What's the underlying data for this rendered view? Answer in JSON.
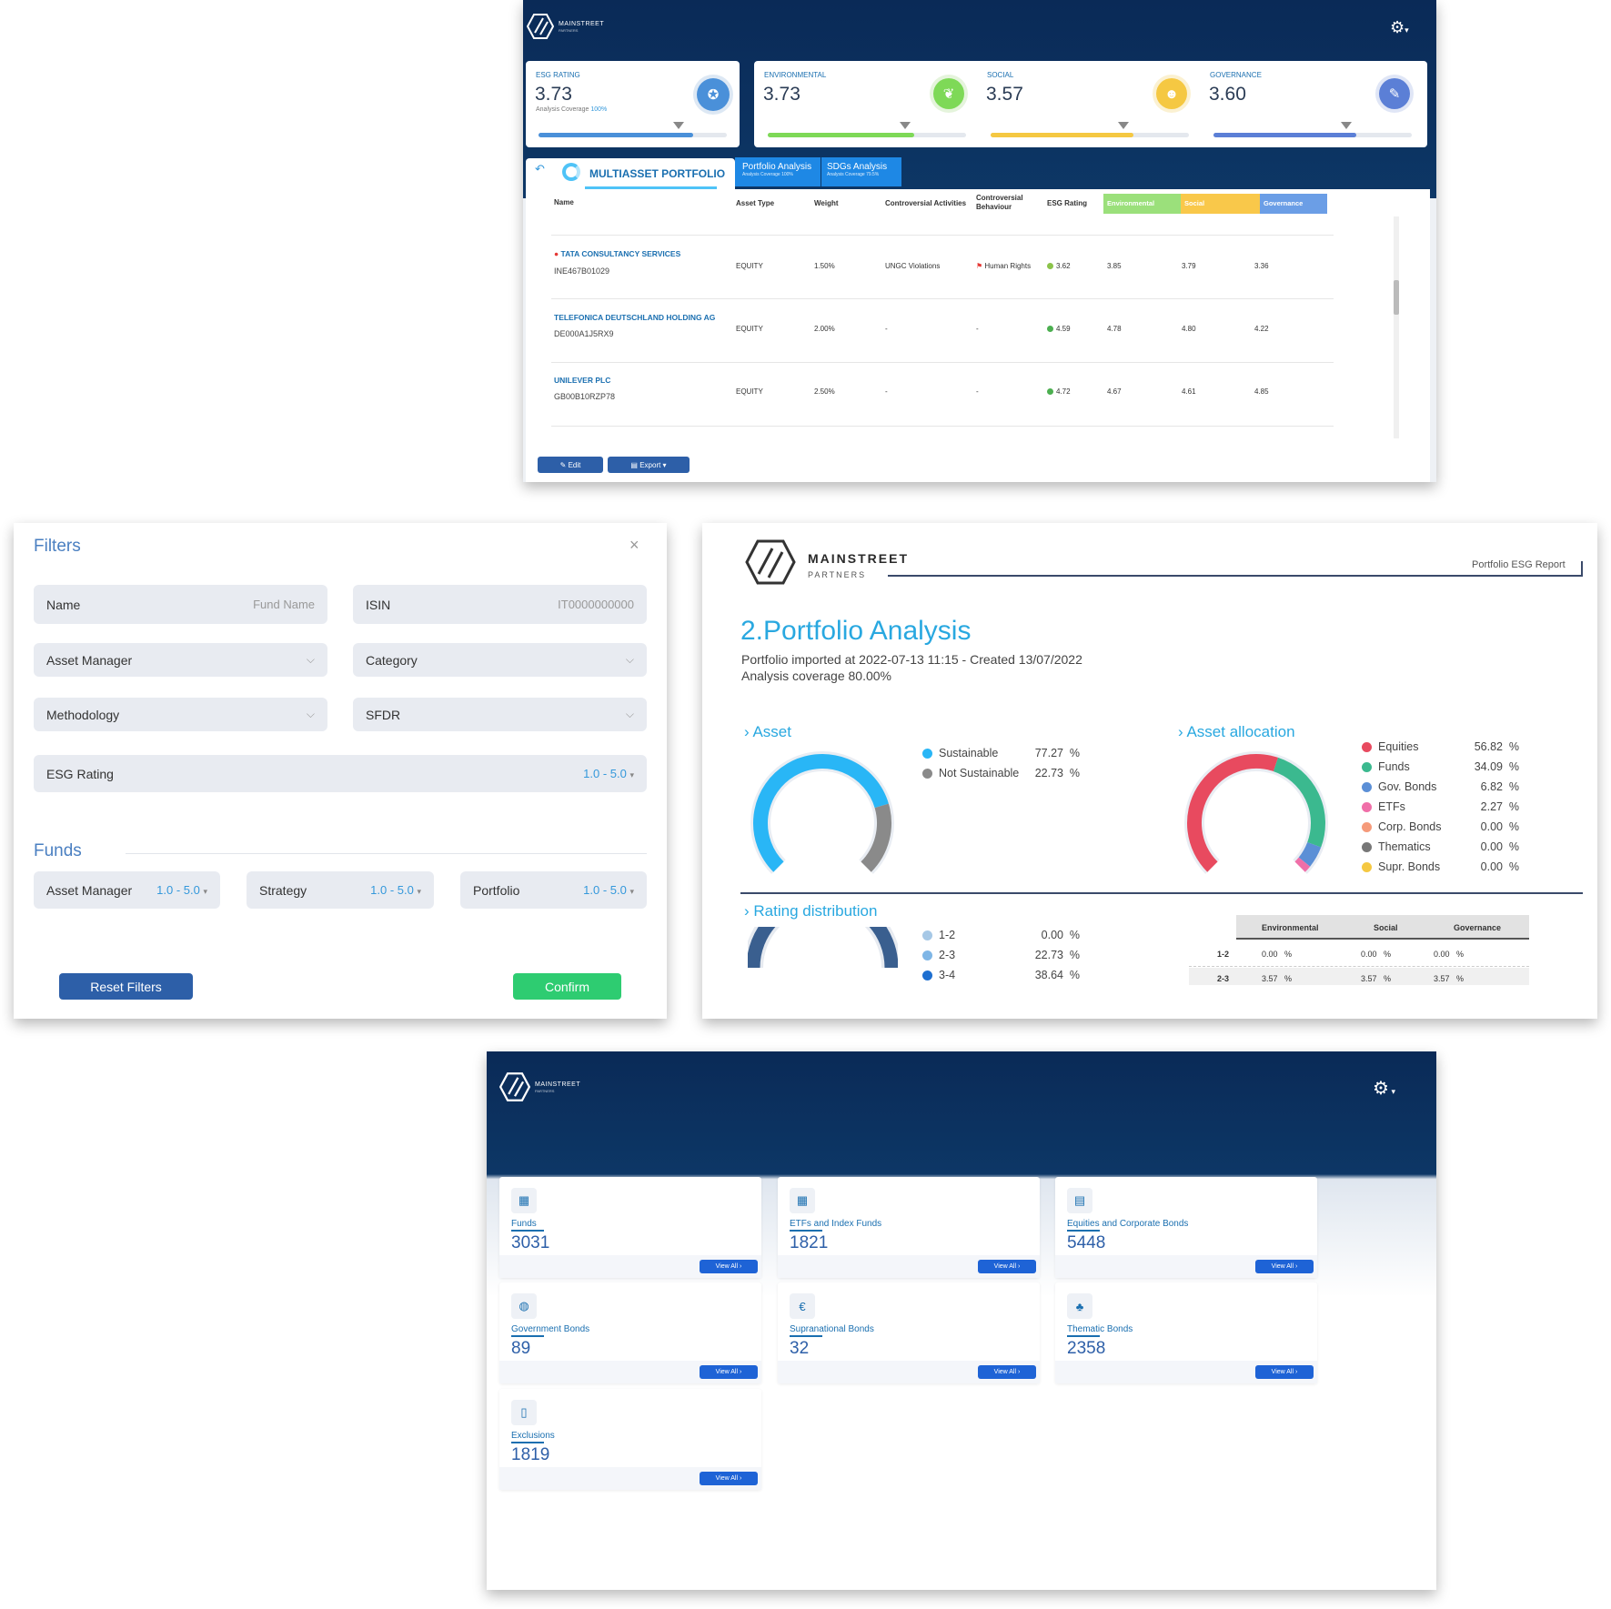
{
  "dashboard": {
    "logo": {
      "title": "MAINSTREET",
      "subtitle": "PARTNERS"
    },
    "kpis": [
      {
        "label": "ESG RATING",
        "value": "3.73",
        "coverage_label": "Analysis Coverage",
        "coverage_value": "100%",
        "icon": "handshake-icon",
        "color": "#4a90d9",
        "progress": 0.82
      },
      {
        "label": "ENVIRONMENTAL",
        "value": "3.73",
        "icon": "leaf-icon",
        "color": "#7ed957",
        "progress": 0.74
      },
      {
        "label": "SOCIAL",
        "value": "3.57",
        "icon": "people-icon",
        "color": "#f5c842",
        "progress": 0.72
      },
      {
        "label": "GOVERNANCE",
        "value": "3.60",
        "icon": "document-icon",
        "color": "#5b7fd6",
        "progress": 0.72
      }
    ],
    "portfolio_name": "MULTIASSET PORTFOLIO",
    "tabs": [
      {
        "label": "Portfolio Analysis",
        "sub": "Analysis Coverage 100%"
      },
      {
        "label": "SDGs Analysis",
        "sub": "Analysis Coverage 79.5%"
      }
    ],
    "columns": [
      "Name",
      "Asset Type",
      "Weight",
      "Controversial Activities",
      "Controversial Behaviour",
      "ESG Rating",
      "Environmental",
      "Social",
      "Governance"
    ],
    "rows": [
      {
        "name": "TATA CONSULTANCY SERVICES",
        "isin": "INE467B01029",
        "type": "EQUITY",
        "weight": "1.50%",
        "activities": "UNGC Violations",
        "behaviour": "Human Rights",
        "esg": "3.62",
        "env": "3.85",
        "soc": "3.79",
        "gov": "3.36",
        "dot": "#8bc34a"
      },
      {
        "name": "TELEFONICA DEUTSCHLAND HOLDING AG",
        "isin": "DE000A1J5RX9",
        "type": "EQUITY",
        "weight": "2.00%",
        "activities": "-",
        "behaviour": "-",
        "esg": "4.59",
        "env": "4.78",
        "soc": "4.80",
        "gov": "4.22",
        "dot": "#4caf50"
      },
      {
        "name": "UNILEVER PLC",
        "isin": "GB00B10RZP78",
        "type": "EQUITY",
        "weight": "2.50%",
        "activities": "-",
        "behaviour": "-",
        "esg": "4.72",
        "env": "4.67",
        "soc": "4.61",
        "gov": "4.85",
        "dot": "#4caf50"
      }
    ],
    "edit_label": "Edit",
    "export_label": "Export"
  },
  "filters": {
    "title": "Filters",
    "close": "×",
    "name_label": "Name",
    "name_placeholder": "Fund Name",
    "isin_label": "ISIN",
    "isin_placeholder": "IT0000000000",
    "asset_manager": "Asset Manager",
    "category": "Category",
    "methodology": "Methodology",
    "sfdr": "SFDR",
    "esg_label": "ESG Rating",
    "esg_range": "1.0 - 5.0",
    "funds_title": "Funds",
    "funds": [
      {
        "label": "Asset Manager",
        "range": "1.0 - 5.0"
      },
      {
        "label": "Strategy",
        "range": "1.0 - 5.0"
      },
      {
        "label": "Portfolio",
        "range": "1.0 - 5.0"
      }
    ],
    "reset": "Reset Filters",
    "confirm": "Confirm"
  },
  "report": {
    "logo_title": "MAINSTREET",
    "logo_sub": "PARTNERS",
    "header_right": "Portfolio ESG Report",
    "title": "2.Portfolio Analysis",
    "line1": "Portfolio imported at 2022-07-13 11:15 - Created 13/07/2022",
    "line2": "Analysis coverage 80.00%",
    "asset_title": "Asset",
    "asset_legend": [
      {
        "name": "Sustainable",
        "value": "77.27",
        "pct": "%",
        "color": "#29b6f6",
        "share": 77.27
      },
      {
        "name": "Not Sustainable",
        "value": "22.73",
        "pct": "%",
        "color": "#8a8a8a",
        "share": 22.73
      }
    ],
    "alloc_title": "Asset allocation",
    "alloc_legend": [
      {
        "name": "Equities",
        "value": "56.82",
        "pct": "%",
        "color": "#e84a5f",
        "share": 56.82
      },
      {
        "name": "Funds",
        "value": "34.09",
        "pct": "%",
        "color": "#3bb98f",
        "share": 34.09
      },
      {
        "name": "Gov. Bonds",
        "value": "6.82",
        "pct": "%",
        "color": "#5b8fd6",
        "share": 6.82
      },
      {
        "name": "ETFs",
        "value": "2.27",
        "pct": "%",
        "color": "#f06fa8",
        "share": 2.27
      },
      {
        "name": "Corp. Bonds",
        "value": "0.00",
        "pct": "%",
        "color": "#f59a7a",
        "share": 0
      },
      {
        "name": "Thematics",
        "value": "0.00",
        "pct": "%",
        "color": "#777777",
        "share": 0
      },
      {
        "name": "Supr. Bonds",
        "value": "0.00",
        "pct": "%",
        "color": "#f5c842",
        "share": 0
      }
    ],
    "rating_title": "Rating distribution",
    "rating_legend": [
      {
        "name": "1-2",
        "value": "0.00",
        "pct": "%",
        "color": "#a6c8e6"
      },
      {
        "name": "2-3",
        "value": "22.73",
        "pct": "%",
        "color": "#7fb6e6"
      },
      {
        "name": "3-4",
        "value": "38.64",
        "pct": "%",
        "color": "#1e6fd0"
      }
    ],
    "table_cols": [
      "Environmental",
      "Social",
      "Governance"
    ],
    "table_rows": [
      {
        "label": "1-2",
        "vals": [
          "0.00",
          "0.00",
          "0.00"
        ],
        "pct": "%"
      },
      {
        "label": "2-3",
        "vals": [
          "3.57",
          "3.57",
          "3.57"
        ],
        "pct": "%"
      }
    ]
  },
  "catalog": {
    "logo_title": "MAINSTREET",
    "logo_sub": "PARTNERS",
    "view_all": "View All ›",
    "cards": [
      {
        "label": "Funds",
        "count": "3031",
        "icon": "fund-icon"
      },
      {
        "label": "ETFs and Index Funds",
        "count": "1821",
        "icon": "etf-icon"
      },
      {
        "label": "Equities and Corporate Bonds",
        "count": "5448",
        "icon": "equity-icon"
      },
      {
        "label": "Government Bonds",
        "count": "89",
        "icon": "globe-icon"
      },
      {
        "label": "Supranational Bonds",
        "count": "32",
        "icon": "euro-icon"
      },
      {
        "label": "Thematic Bonds",
        "count": "2358",
        "icon": "theme-icon"
      },
      {
        "label": "Exclusions",
        "count": "1819",
        "icon": "file-icon"
      }
    ]
  }
}
